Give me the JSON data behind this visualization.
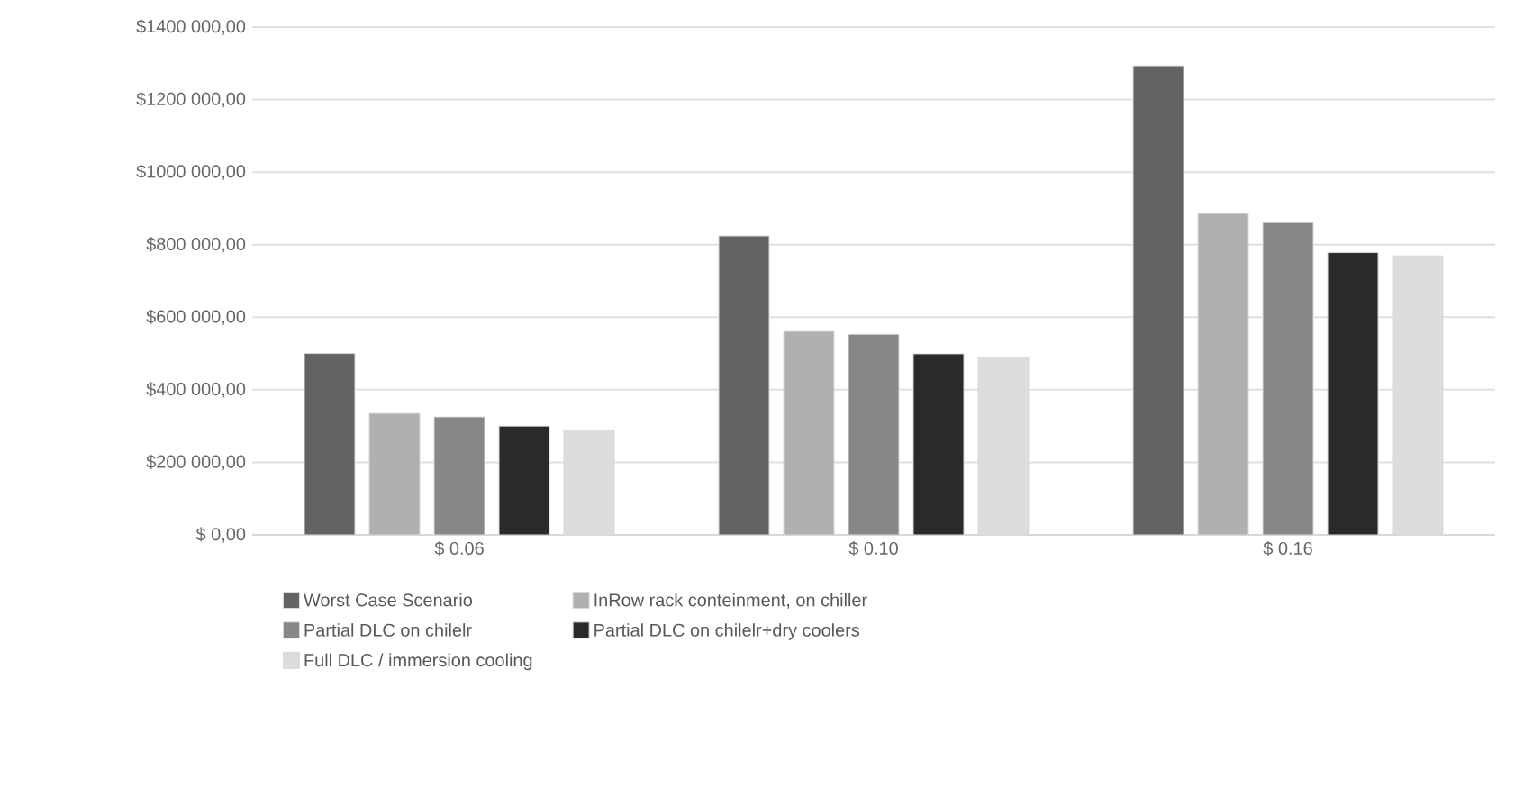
{
  "chart_data": {
    "type": "bar",
    "categories": [
      "$ 0.06",
      "$ 0.10",
      "$ 0.16"
    ],
    "series": [
      {
        "name": "Worst Case Scenario",
        "color": "#636363",
        "values": [
          500000,
          824000,
          1293000
        ]
      },
      {
        "name": "InRow rack conteinment, on chiller",
        "color": "#b0b0b0",
        "values": [
          335000,
          561000,
          886000
        ]
      },
      {
        "name": "Partial DLC on chilelr",
        "color": "#878787",
        "values": [
          325000,
          553000,
          861000
        ]
      },
      {
        "name": "Partial DLC on chilelr+dry coolers",
        "color": "#2a2a2a",
        "values": [
          300000,
          499000,
          778000
        ]
      },
      {
        "name": "Full DLC / immersion cooling",
        "color": "#dcdcdc",
        "values": [
          289000,
          489000,
          769000
        ]
      }
    ],
    "ylim": [
      0,
      1400000
    ],
    "yticks": [
      {
        "value": 0,
        "label": "$ 0,00"
      },
      {
        "value": 200000,
        "label": "$200 000,00"
      },
      {
        "value": 400000,
        "label": "$400 000,00"
      },
      {
        "value": 600000,
        "label": "$600 000,00"
      },
      {
        "value": 800000,
        "label": "$800 000,00"
      },
      {
        "value": 1000000,
        "label": "$1000 000,00"
      },
      {
        "value": 1200000,
        "label": "$1200 000,00"
      },
      {
        "value": 1400000,
        "label": "$1400 000,00"
      }
    ],
    "grid": "y",
    "legend": "bottom"
  }
}
